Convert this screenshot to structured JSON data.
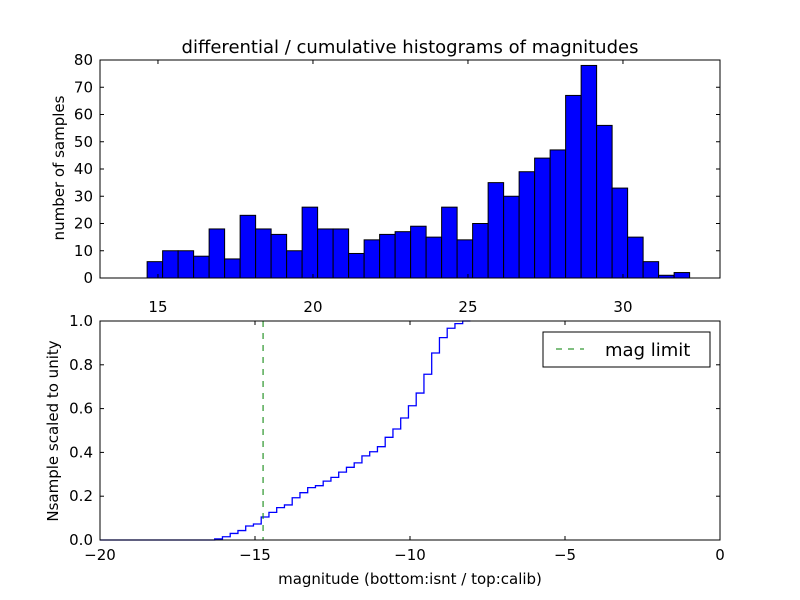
{
  "chart_data": [
    {
      "type": "bar",
      "title": "differential / cumulative histograms of magnitudes",
      "xlabel": "",
      "ylabel": "number of samples",
      "xlim": [
        13.13,
        33.13
      ],
      "ylim": [
        0,
        80
      ],
      "xticks": [
        15,
        20,
        25,
        30
      ],
      "yticks": [
        0,
        10,
        20,
        30,
        40,
        50,
        60,
        70,
        80
      ],
      "bin_start": 14.65,
      "bin_width": 0.5,
      "values": [
        6,
        10,
        10,
        8,
        18,
        7,
        23,
        18,
        16,
        10,
        26,
        18,
        18,
        9,
        14,
        16,
        17,
        19,
        15,
        26,
        14,
        20,
        35,
        30,
        39,
        44,
        47,
        67,
        78,
        56,
        33,
        15,
        6,
        1,
        2
      ],
      "color": "#0000ff"
    },
    {
      "type": "line",
      "xlabel": "magnitude (bottom:isnt / top:calib)",
      "ylabel": "Nsample scaled to unity",
      "xlim": [
        -20,
        0
      ],
      "ylim": [
        0,
        1.0
      ],
      "xticks": [
        -20,
        -15,
        -10,
        -5,
        0
      ],
      "yticks": [
        "0.0",
        "0.2",
        "0.4",
        "0.6",
        "0.8",
        "1.0"
      ],
      "step_start": -16.3,
      "step_width": 0.25,
      "values": [
        0.005,
        0.015,
        0.03,
        0.043,
        0.064,
        0.073,
        0.105,
        0.126,
        0.148,
        0.16,
        0.193,
        0.216,
        0.239,
        0.248,
        0.269,
        0.286,
        0.31,
        0.332,
        0.352,
        0.384,
        0.403,
        0.426,
        0.469,
        0.507,
        0.557,
        0.613,
        0.671,
        0.757,
        0.854,
        0.924,
        0.967,
        0.988,
        1.0
      ],
      "color": "#0000ff",
      "mag_limit": -14.74,
      "mag_limit_color": "#007f00",
      "legend": {
        "label": "mag limit",
        "placement": "top-right"
      }
    }
  ]
}
